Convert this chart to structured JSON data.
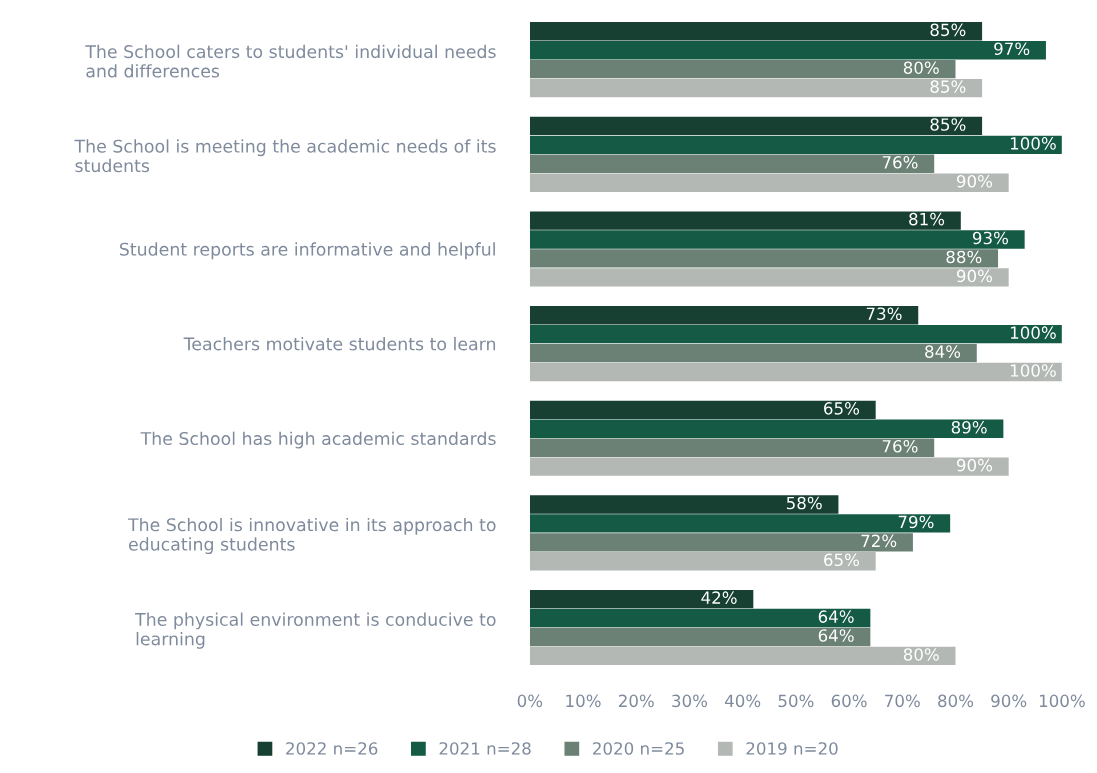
{
  "chart_data": {
    "type": "bar",
    "orientation": "horizontal",
    "categories": [
      "The School caters to students' individual needs\nand differences",
      "The School is meeting the academic needs of its\nstudents",
      "Student reports are informative and helpful",
      "Teachers motivate students to learn",
      "The School has high academic standards",
      "The School is innovative in its approach to\neducating students",
      "The physical environment is conducive to\nlearning"
    ],
    "series": [
      {
        "name": "2022 n=26",
        "color": "#173f32",
        "values": [
          85,
          85,
          81,
          73,
          65,
          58,
          42
        ],
        "value_labels": [
          "85%",
          "85%",
          "81%",
          "73%",
          "65%",
          "58%",
          "42%"
        ]
      },
      {
        "name": "2021 n=28",
        "color": "#145a45",
        "values": [
          97,
          100,
          93,
          100,
          89,
          79,
          64
        ],
        "value_labels": [
          "97%",
          "100%",
          "93%",
          "100%",
          "89%",
          "79%",
          "64%"
        ]
      },
      {
        "name": "2020 n=25",
        "color": "#6b8176",
        "values": [
          80,
          76,
          88,
          84,
          76,
          72,
          64
        ],
        "value_labels": [
          "80%",
          "76%",
          "88%",
          "84%",
          "76%",
          "72%",
          "64%"
        ]
      },
      {
        "name": "2019 n=20",
        "color": "#b3b8b5",
        "values": [
          85,
          90,
          90,
          100,
          90,
          65,
          80
        ],
        "value_labels": [
          "85%",
          "90%",
          "90%",
          "100%",
          "90%",
          "65%",
          "80%"
        ]
      }
    ],
    "xlim": [
      0,
      100
    ],
    "xticks": [
      {
        "value": 0,
        "label": "0%"
      },
      {
        "value": 10,
        "label": "10%"
      },
      {
        "value": 20,
        "label": "20%"
      },
      {
        "value": 30,
        "label": "30%"
      },
      {
        "value": 40,
        "label": "40%"
      },
      {
        "value": 50,
        "label": "50%"
      },
      {
        "value": 60,
        "label": "60%"
      },
      {
        "value": 70,
        "label": "70%"
      },
      {
        "value": 80,
        "label": "80%"
      },
      {
        "value": 90,
        "label": "90%"
      },
      {
        "value": 100,
        "label": "100%"
      }
    ],
    "grid": false,
    "legend": "bottom"
  }
}
